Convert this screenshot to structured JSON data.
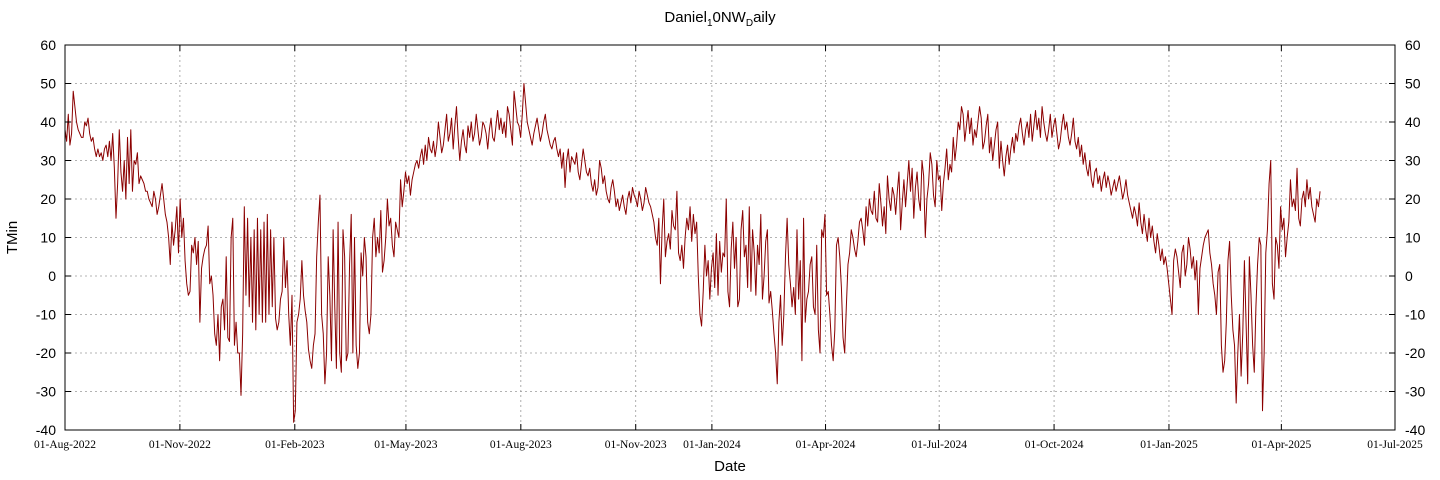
{
  "chart_data": {
    "type": "line",
    "title": {
      "main": "Daniel",
      "sub1": "1",
      "mid": "0NW",
      "sub2": "D",
      "tail": "aily"
    },
    "xlabel": "Date",
    "ylabel": "TMin",
    "ylim": [
      -40,
      60
    ],
    "yticks": [
      -40,
      -30,
      -20,
      -10,
      0,
      10,
      20,
      30,
      40,
      50,
      60
    ],
    "xlim": [
      "2022-08-01",
      "2025-07-01"
    ],
    "xticks": [
      "01-Aug-2022",
      "01-Nov-2022",
      "01-Feb-2023",
      "01-May-2023",
      "01-Aug-2023",
      "01-Nov-2023",
      "01-Jan-2024",
      "01-Apr-2024",
      "01-Jul-2024",
      "01-Oct-2024",
      "01-Jan-2025",
      "01-Apr-2025",
      "01-Jul-2025"
    ],
    "grid": true,
    "series_color": "#8b0000",
    "series": [
      {
        "x_start": "2022-08-01",
        "x_end": "2025-05-02",
        "values": [
          38,
          35,
          42,
          34,
          37,
          48,
          44,
          40,
          38,
          37,
          36,
          36,
          40,
          39,
          41,
          37,
          35,
          36,
          33,
          31,
          33,
          31,
          32,
          30,
          33,
          34,
          31,
          35,
          30,
          37,
          28,
          15,
          24,
          38,
          27,
          22,
          30,
          20,
          36,
          24,
          38,
          22,
          30,
          29,
          32,
          24,
          26,
          25,
          24,
          22,
          22,
          20,
          19,
          18,
          22,
          20,
          16,
          18,
          21,
          24,
          20,
          16,
          14,
          10,
          3,
          14,
          8,
          12,
          18,
          6,
          20,
          10,
          15,
          4,
          -2,
          -5,
          -4,
          8,
          6,
          10,
          3,
          9,
          -12,
          2,
          5,
          7,
          8,
          13,
          -2,
          0,
          -5,
          -15,
          -18,
          -10,
          -22,
          -8,
          -6,
          -14,
          5,
          -16,
          -17,
          10,
          15,
          -18,
          -12,
          -20,
          -20,
          -31,
          -15,
          18,
          -5,
          15,
          -8,
          10,
          -12,
          12,
          -14,
          15,
          -10,
          12,
          -12,
          14,
          -12,
          16,
          -10,
          12,
          -8,
          10,
          -11,
          -14,
          -12,
          -6,
          -4,
          10,
          -3,
          4,
          -10,
          -18,
          -5,
          -38,
          -35,
          -12,
          -10,
          -6,
          4,
          -5,
          -9,
          -12,
          -19,
          -22,
          -24,
          -18,
          -15,
          5,
          14,
          21,
          -10,
          -15,
          -28,
          -20,
          5,
          -5,
          -22,
          12,
          -8,
          -24,
          14,
          -20,
          -25,
          12,
          5,
          -22,
          -20,
          3,
          16,
          -20,
          10,
          -18,
          -24,
          -20,
          6,
          0,
          10,
          5,
          -12,
          -15,
          -10,
          10,
          15,
          5,
          10,
          6,
          17,
          1,
          4,
          10,
          20,
          13,
          15,
          8,
          5,
          14,
          12,
          10,
          25,
          18,
          22,
          27,
          24,
          26,
          21,
          25,
          27,
          29,
          30,
          28,
          31,
          33,
          29,
          34,
          30,
          36,
          33,
          32,
          35,
          31,
          34,
          40,
          36,
          32,
          34,
          38,
          42,
          35,
          37,
          41,
          33,
          39,
          44,
          36,
          30,
          35,
          38,
          34,
          32,
          39,
          36,
          40,
          35,
          37,
          42,
          38,
          34,
          36,
          40,
          39,
          37,
          33,
          38,
          41,
          36,
          35,
          39,
          43,
          38,
          41,
          37,
          40,
          36,
          44,
          42,
          38,
          34,
          48,
          44,
          40,
          39,
          36,
          42,
          50,
          45,
          40,
          38,
          36,
          34,
          37,
          39,
          41,
          38,
          35,
          37,
          40,
          42,
          38,
          36,
          34,
          33,
          35,
          36,
          33,
          31,
          33,
          28,
          32,
          23,
          30,
          33,
          27,
          31,
          30,
          29,
          32,
          27,
          25,
          29,
          33,
          30,
          27,
          26,
          28,
          24,
          22,
          25,
          21,
          23,
          30,
          28,
          24,
          26,
          22,
          20,
          19,
          23,
          25,
          22,
          18,
          20,
          17,
          19,
          21,
          18,
          16,
          20,
          22,
          19,
          23,
          21,
          20,
          18,
          22,
          20,
          17,
          19,
          23,
          21,
          19,
          18,
          16,
          14,
          10,
          8,
          15,
          -2,
          12,
          20,
          5,
          9,
          11,
          7,
          17,
          13,
          12,
          22,
          6,
          4,
          8,
          2,
          10,
          15,
          12,
          18,
          9,
          16,
          11,
          14,
          0,
          -10,
          -13,
          -4,
          8,
          0,
          4,
          -6,
          2,
          6,
          -3,
          11,
          -5,
          9,
          1,
          6,
          5,
          20,
          -4,
          -8,
          7,
          14,
          2,
          10,
          -8,
          -6,
          12,
          17,
          5,
          8,
          -3,
          18,
          -4,
          12,
          6,
          -5,
          8,
          3,
          16,
          -6,
          0,
          9,
          12,
          -7,
          -4,
          -9,
          -15,
          -20,
          -28,
          -12,
          -5,
          -18,
          -10,
          5,
          15,
          3,
          -2,
          -8,
          -3,
          -10,
          12,
          -6,
          4,
          -22,
          15,
          -12,
          -6,
          -4,
          3,
          5,
          -8,
          -10,
          8,
          -14,
          -20,
          12,
          10,
          16,
          -5,
          -4,
          -10,
          -18,
          -22,
          -14,
          8,
          10,
          5,
          -3,
          -16,
          -20,
          -8,
          3,
          6,
          12,
          10,
          7,
          5,
          9,
          14,
          15,
          12,
          8,
          18,
          13,
          20,
          17,
          16,
          22,
          15,
          14,
          24,
          19,
          13,
          18,
          11,
          26,
          20,
          17,
          23,
          21,
          16,
          22,
          27,
          12,
          19,
          25,
          18,
          24,
          30,
          22,
          28,
          15,
          23,
          27,
          20,
          17,
          30,
          26,
          10,
          20,
          24,
          32,
          29,
          21,
          18,
          30,
          25,
          26,
          17,
          24,
          28,
          33,
          25,
          29,
          27,
          36,
          30,
          34,
          40,
          38,
          44,
          42,
          35,
          39,
          43,
          37,
          41,
          34,
          38,
          36,
          40,
          44,
          41,
          33,
          35,
          39,
          42,
          32,
          36,
          30,
          34,
          38,
          40,
          28,
          35,
          30,
          26,
          31,
          34,
          29,
          33,
          36,
          32,
          37,
          35,
          39,
          41,
          37,
          34,
          38,
          40,
          36,
          42,
          35,
          39,
          43,
          38,
          41,
          36,
          44,
          40,
          37,
          35,
          38,
          42,
          36,
          39,
          41,
          37,
          33,
          35,
          39,
          42,
          38,
          40,
          36,
          34,
          37,
          41,
          35,
          33,
          36,
          31,
          34,
          29,
          32,
          28,
          26,
          30,
          25,
          23,
          27,
          28,
          24,
          26,
          22,
          25,
          27,
          23,
          26,
          24,
          21,
          23,
          25,
          22,
          24,
          26,
          23,
          20,
          22,
          25,
          21,
          19,
          17,
          15,
          18,
          16,
          13,
          19,
          14,
          11,
          16,
          12,
          9,
          15,
          10,
          13,
          9,
          6,
          11,
          8,
          4,
          7,
          3,
          5,
          2,
          -2,
          -6,
          -10,
          4,
          7,
          5,
          1,
          -3,
          6,
          8,
          0,
          3,
          10,
          7,
          2,
          5,
          -1,
          4,
          -10,
          2,
          5,
          8,
          10,
          11,
          12,
          6,
          3,
          -2,
          -5,
          -10,
          1,
          3,
          -18,
          -25,
          -22,
          -12,
          4,
          9,
          -5,
          -14,
          -18,
          -33,
          -20,
          -10,
          -26,
          -15,
          4,
          -12,
          -28,
          5,
          -5,
          -18,
          -25,
          -8,
          3,
          10,
          8,
          -35,
          -20,
          6,
          12,
          24,
          30,
          -2,
          -6,
          10,
          8,
          2,
          18,
          12,
          15,
          5,
          10,
          14,
          25,
          18,
          20,
          17,
          28,
          15,
          13,
          20,
          22,
          18,
          25,
          20,
          23,
          18,
          16,
          14,
          20,
          18,
          22
        ]
      }
    ]
  }
}
